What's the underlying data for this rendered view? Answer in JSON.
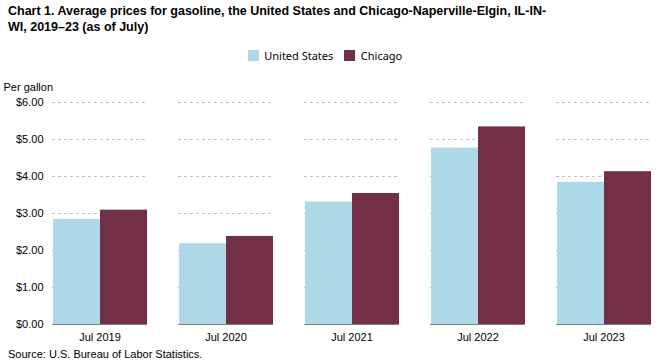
{
  "chart_data": {
    "type": "bar",
    "title": "Chart 1. Average prices for gasoline, the United States and Chicago-Naperville-Elgin, IL-IN-\nWI, 2019–23 (as of July)",
    "ylabel": "Per gallon",
    "source": "Source: U.S. Bureau of Labor Statistics.",
    "categories": [
      "Jul 2019",
      "Jul 2020",
      "Jul 2021",
      "Jul 2022",
      "Jul 2023"
    ],
    "series": [
      {
        "name": "United States",
        "color": "#add8e6",
        "values": [
          2.84,
          2.18,
          3.31,
          4.77,
          3.84
        ]
      },
      {
        "name": "Chicago",
        "color": "#722f47",
        "values": [
          3.09,
          2.38,
          3.54,
          5.34,
          4.13
        ]
      }
    ],
    "ylim": [
      0,
      6.0
    ],
    "yticks": [
      {
        "value": 0,
        "label": "$0.00"
      },
      {
        "value": 1,
        "label": "$1.00"
      },
      {
        "value": 2,
        "label": "$2.00"
      },
      {
        "value": 3,
        "label": "$3.00"
      },
      {
        "value": 4,
        "label": "$4.00"
      },
      {
        "value": 5,
        "label": "$5.00"
      },
      {
        "value": 6,
        "label": "$6.00"
      }
    ],
    "grid": true,
    "legend": "top"
  }
}
